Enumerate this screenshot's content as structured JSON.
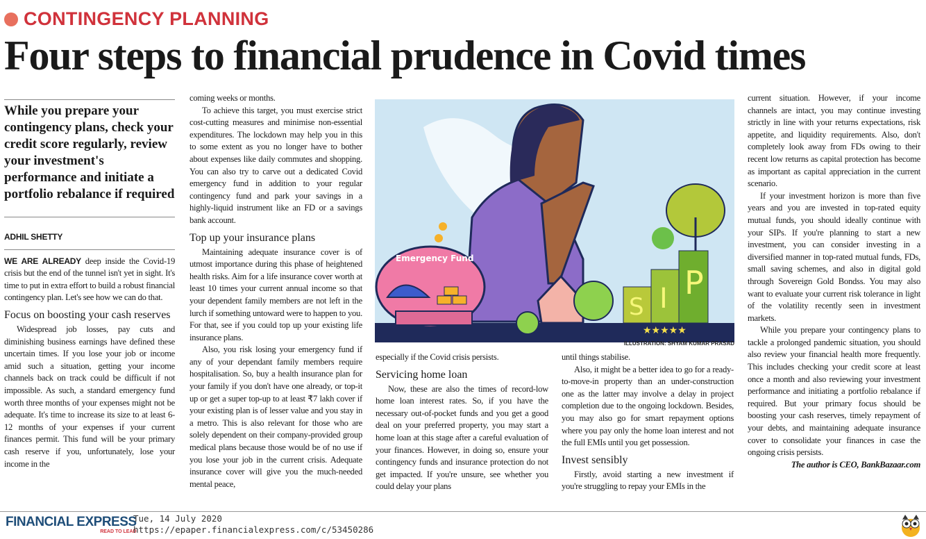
{
  "kicker": "CONTINGENCY PLANNING",
  "headline": "Four steps to financial prudence in Covid times",
  "dek": "While you prepare your contingency plans, check your credit score regularly, review your investment's performance and initiate a portfolio rebalance if required",
  "byline": "ADHIL SHETTY",
  "illustration": {
    "label": "Emergency Fund",
    "sip_letters": [
      "S",
      "I",
      "P"
    ],
    "stars": "★★★★★",
    "credit": "ILLUSTRATION: SHYAM KUMAR PRASAD"
  },
  "columns": [
    [
      {
        "type": "lead",
        "lead": "WE ARE ALREADY",
        "text": " deep inside the Covid-19 crisis but the end of the tunnel isn't yet in sight. It's time to put in extra effort to build a robust financial contingency plan. Let's see how we can do that."
      },
      {
        "type": "h",
        "text": "Focus on boosting your cash reserves"
      },
      {
        "type": "p",
        "text": "Widespread job losses, pay cuts and diminishing business earnings have defined these uncertain times. If you lose your job or income amid such a situation, getting your income channels back on track could be difficult if not impossible. As such, a standard emergency fund worth three months of your expenses might not be adequate. It's time to increase its size to at least 6-12 months of your expenses if your current finances permit. This fund will be your primary cash reserve if you, unfortunately, lose your income in the"
      }
    ],
    [
      {
        "type": "pc",
        "text": "coming weeks or months."
      },
      {
        "type": "p",
        "text": "To achieve this target, you must exercise strict cost-cutting measures and minimise non-essential expenditures. The lockdown may help you in this to some extent as you no longer have to bother about expenses like daily commutes and shopping. You can also try to carve out a dedicated Covid emergency fund in addition to your regular contingency fund and park your savings in a highly-liquid instrument like an FD or a savings bank account."
      },
      {
        "type": "h",
        "text": "Top up your insurance plans"
      },
      {
        "type": "p",
        "text": "Maintaining adequate insurance cover is of utmost importance during this phase of heightened health risks. Aim for a life insurance cover worth at least 10 times your current annual income so that your dependent family members are not left in the lurch if something untoward were to happen to you. For that, see if you could top up your existing life insurance plans."
      },
      {
        "type": "p",
        "text": "Also, you risk losing your emergency fund if any of your dependant family members require hospitalisation. So, buy a health insurance plan for your family if you don't have one already, or top-it up or get a super top-up to at least ₹7 lakh cover if your existing plan is of lesser value and you stay in a metro. This is also relevant for those who are solely dependent on their company-provided group medical plans because those would be of no use if you lose your job in the current crisis. Adequate insurance cover will give you the much-needed mental peace,"
      }
    ],
    [
      {
        "type": "pc",
        "text": "especially if the Covid crisis persists."
      },
      {
        "type": "h",
        "text": "Servicing home loan"
      },
      {
        "type": "p",
        "text": "Now, these are also the times of record-low home loan interest rates. So, if you have the necessary out-of-pocket funds and you get a good deal on your preferred property, you may start a home loan at this stage after a careful evaluation of your finances. However, in doing so, ensure your contingency funds and insurance protection do not get impacted. If you're unsure, see whether you could delay your plans"
      }
    ],
    [
      {
        "type": "pc",
        "text": "until things stabilise."
      },
      {
        "type": "p",
        "text": "Also, it might be a better idea to go for a ready-to-move-in property than an under-construction one as the latter may involve a delay in project completion due to the ongoing lockdown. Besides, you may also go for smart repayment options where you pay only the home loan interest and not the full EMIs until you get possession."
      },
      {
        "type": "h",
        "text": "Invest sensibly"
      },
      {
        "type": "p",
        "text": "Firstly, avoid starting a new investment if you're struggling to repay your EMIs in the"
      }
    ],
    [
      {
        "type": "pc",
        "text": "current situation. However, if your income channels are intact, you may continue investing strictly in line with your returns expectations, risk appetite, and liquidity requirements. Also, don't completely look away from FDs owing to their recent low returns as capital protection has become as important as capital appreciation in the current scenario."
      },
      {
        "type": "p",
        "text": "If your investment horizon is more than five years and you are invested in top-rated equity mutual funds, you should ideally continue with your SIPs. If you're planning to start a new investment, you can consider investing in a diversified manner in top-rated mutual funds, FDs, small saving schemes, and also in digital gold through Sovereign Gold Bondss. You may also want to evaluate your current risk tolerance in light of the volatility recently seen in investment markets."
      },
      {
        "type": "p",
        "text": "While you prepare your contingency plans to tackle a prolonged pandemic situation, you should also review your financial health more frequently. This includes checking your credit score at least once a month and also reviewing your investment performance and initiating a portfolio rebalance if required. But your primary focus should be boosting your cash reserves, timely repayment of your debts, and maintaining adequate insurance cover to consolidate your finances in case the ongoing crisis persists."
      },
      {
        "type": "sign",
        "text": "The author is CEO, BankBazaar.com"
      }
    ]
  ],
  "footer": {
    "brand": "FINANCIAL EXPRESS",
    "tagline": "READ TO LEAD",
    "date": "Tue, 14 July 2020",
    "url": "https://epaper.financialexpress.com/c/53450286"
  },
  "colors": {
    "kicker": "#d0323b",
    "brand": "#1f4e79",
    "sky": "#cfe6f3",
    "ground": "#1f2a5a"
  }
}
